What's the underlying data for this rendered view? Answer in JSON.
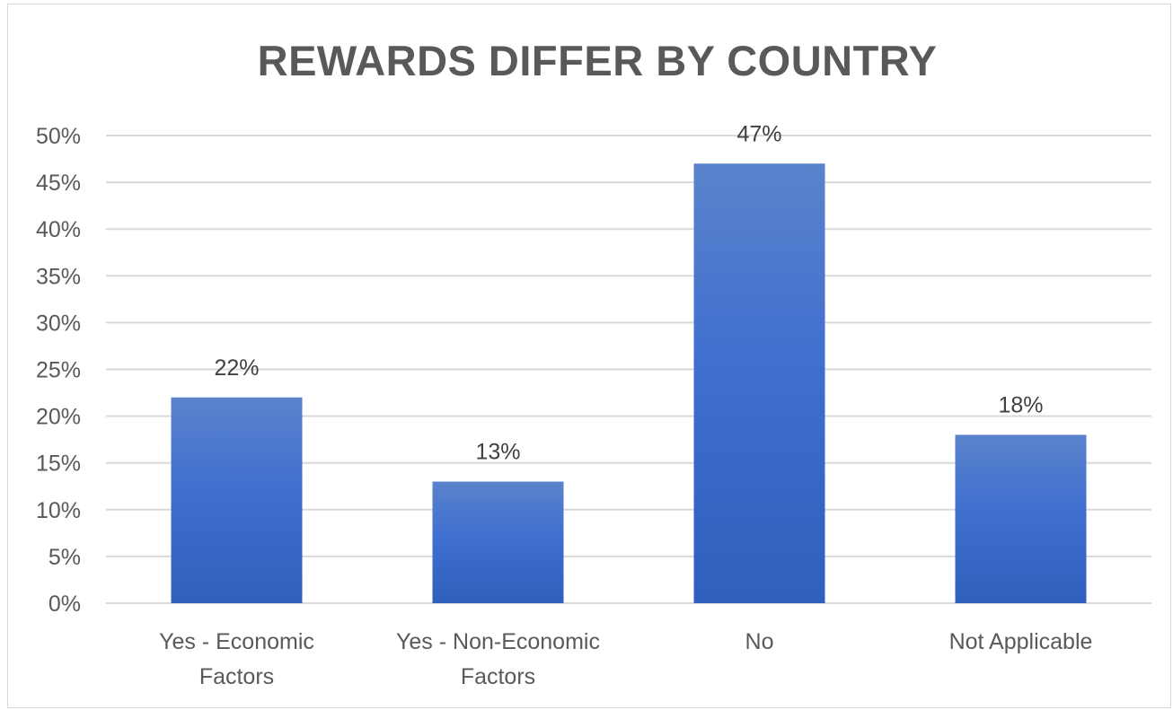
{
  "chart_data": {
    "type": "bar",
    "title": "REWARDS DIFFER BY COUNTRY",
    "categories": [
      [
        "Yes - Economic",
        "Factors"
      ],
      [
        "Yes - Non-Economic",
        "Factors"
      ],
      [
        "No"
      ],
      [
        "Not Applicable"
      ]
    ],
    "values": [
      22,
      13,
      47,
      18
    ],
    "data_labels": [
      "22%",
      "13%",
      "47%",
      "18%"
    ],
    "ylim": [
      0,
      50
    ],
    "yticks": [
      "0%",
      "5%",
      "10%",
      "15%",
      "20%",
      "25%",
      "30%",
      "35%",
      "40%",
      "45%",
      "50%"
    ],
    "grid": true,
    "legend": "none",
    "bar_color_top": "#5b83cc",
    "bar_color_bottom": "#2f60bd",
    "grid_color": "#d9d9d9"
  }
}
